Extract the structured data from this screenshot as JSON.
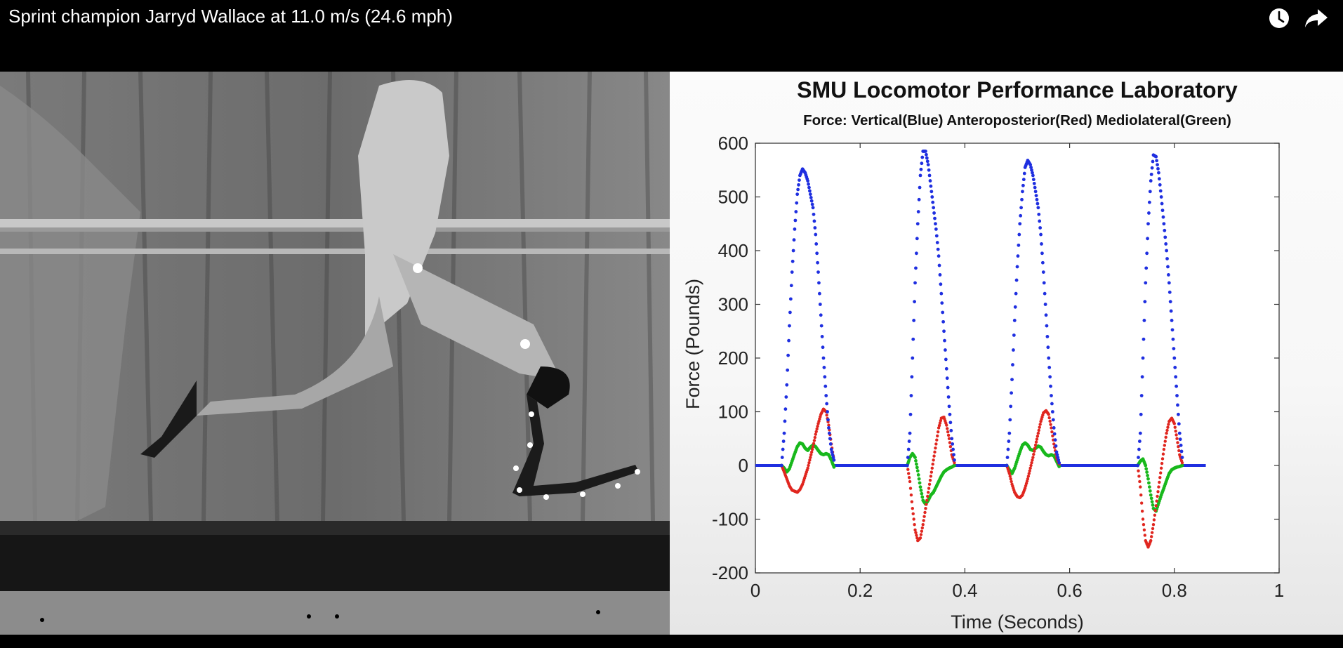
{
  "video": {
    "title": "Sprint champion Jarryd Wallace at 11.0 m/s (24.6 mph)",
    "icons": {
      "watch_later": "clock-icon",
      "share": "share-arrow-icon"
    }
  },
  "chart_data": {
    "type": "scatter",
    "title": "SMU Locomotor Performance Laboratory",
    "subtitle": "Force: Vertical(Blue) Anteroposterior(Red) Mediolateral(Green)",
    "xlabel": "Time (Seconds)",
    "ylabel": "Force (Pounds)",
    "xlim": [
      0,
      1
    ],
    "ylim": [
      -200,
      600
    ],
    "xticks": [
      "0",
      "0.2",
      "0.4",
      "0.6",
      "0.8",
      "1"
    ],
    "yticks": [
      "600",
      "500",
      "400",
      "300",
      "200",
      "100",
      "0",
      "-100",
      "-200"
    ],
    "grid": false,
    "colors": {
      "vertical": "#1f2fe0",
      "anteroposterior": "#e0261f",
      "mediolateral": "#18b81c"
    },
    "steps": [
      {
        "vertical": [
          [
            0.05,
            0
          ],
          [
            0.055,
            60
          ],
          [
            0.06,
            150
          ],
          [
            0.065,
            260
          ],
          [
            0.07,
            360
          ],
          [
            0.075,
            440
          ],
          [
            0.08,
            505
          ],
          [
            0.085,
            540
          ],
          [
            0.09,
            552
          ],
          [
            0.095,
            545
          ],
          [
            0.1,
            530
          ],
          [
            0.105,
            505
          ],
          [
            0.11,
            480
          ],
          [
            0.115,
            430
          ],
          [
            0.12,
            360
          ],
          [
            0.125,
            280
          ],
          [
            0.13,
            200
          ],
          [
            0.135,
            130
          ],
          [
            0.14,
            70
          ],
          [
            0.145,
            30
          ],
          [
            0.15,
            10
          ]
        ],
        "anteroposterior": [
          [
            0.05,
            0
          ],
          [
            0.055,
            -12
          ],
          [
            0.06,
            -25
          ],
          [
            0.065,
            -38
          ],
          [
            0.07,
            -46
          ],
          [
            0.075,
            -48
          ],
          [
            0.08,
            -50
          ],
          [
            0.085,
            -45
          ],
          [
            0.09,
            -35
          ],
          [
            0.095,
            -20
          ],
          [
            0.1,
            -5
          ],
          [
            0.105,
            15
          ],
          [
            0.11,
            35
          ],
          [
            0.115,
            58
          ],
          [
            0.12,
            78
          ],
          [
            0.125,
            95
          ],
          [
            0.13,
            105
          ],
          [
            0.135,
            100
          ],
          [
            0.14,
            75
          ],
          [
            0.145,
            40
          ],
          [
            0.15,
            10
          ]
        ],
        "mediolateral": [
          [
            0.05,
            0
          ],
          [
            0.055,
            -5
          ],
          [
            0.06,
            -12
          ],
          [
            0.065,
            -6
          ],
          [
            0.07,
            8
          ],
          [
            0.075,
            22
          ],
          [
            0.08,
            35
          ],
          [
            0.085,
            42
          ],
          [
            0.09,
            40
          ],
          [
            0.095,
            32
          ],
          [
            0.1,
            28
          ],
          [
            0.105,
            34
          ],
          [
            0.11,
            38
          ],
          [
            0.115,
            35
          ],
          [
            0.12,
            28
          ],
          [
            0.125,
            22
          ],
          [
            0.13,
            20
          ],
          [
            0.135,
            22
          ],
          [
            0.14,
            20
          ],
          [
            0.145,
            10
          ],
          [
            0.15,
            -3
          ]
        ]
      },
      {
        "vertical": [
          [
            0.29,
            0
          ],
          [
            0.295,
            60
          ],
          [
            0.3,
            200
          ],
          [
            0.305,
            340
          ],
          [
            0.31,
            450
          ],
          [
            0.315,
            540
          ],
          [
            0.32,
            585
          ],
          [
            0.325,
            585
          ],
          [
            0.33,
            560
          ],
          [
            0.335,
            520
          ],
          [
            0.34,
            480
          ],
          [
            0.345,
            440
          ],
          [
            0.35,
            390
          ],
          [
            0.355,
            320
          ],
          [
            0.36,
            250
          ],
          [
            0.365,
            180
          ],
          [
            0.37,
            110
          ],
          [
            0.375,
            50
          ],
          [
            0.38,
            10
          ]
        ],
        "anteroposterior": [
          [
            0.29,
            0
          ],
          [
            0.295,
            -30
          ],
          [
            0.3,
            -80
          ],
          [
            0.305,
            -120
          ],
          [
            0.31,
            -140
          ],
          [
            0.315,
            -135
          ],
          [
            0.32,
            -110
          ],
          [
            0.325,
            -80
          ],
          [
            0.33,
            -50
          ],
          [
            0.335,
            -20
          ],
          [
            0.34,
            10
          ],
          [
            0.345,
            40
          ],
          [
            0.35,
            70
          ],
          [
            0.355,
            88
          ],
          [
            0.36,
            90
          ],
          [
            0.365,
            75
          ],
          [
            0.37,
            50
          ],
          [
            0.375,
            20
          ],
          [
            0.38,
            5
          ]
        ],
        "mediolateral": [
          [
            0.29,
            0
          ],
          [
            0.295,
            15
          ],
          [
            0.3,
            22
          ],
          [
            0.305,
            15
          ],
          [
            0.31,
            -10
          ],
          [
            0.315,
            -40
          ],
          [
            0.32,
            -65
          ],
          [
            0.325,
            -72
          ],
          [
            0.33,
            -65
          ],
          [
            0.335,
            -55
          ],
          [
            0.34,
            -50
          ],
          [
            0.345,
            -40
          ],
          [
            0.35,
            -30
          ],
          [
            0.355,
            -20
          ],
          [
            0.36,
            -12
          ],
          [
            0.365,
            -8
          ],
          [
            0.37,
            -5
          ],
          [
            0.375,
            -3
          ],
          [
            0.38,
            0
          ]
        ]
      },
      {
        "vertical": [
          [
            0.48,
            0
          ],
          [
            0.485,
            60
          ],
          [
            0.49,
            160
          ],
          [
            0.495,
            270
          ],
          [
            0.5,
            370
          ],
          [
            0.505,
            450
          ],
          [
            0.51,
            510
          ],
          [
            0.515,
            555
          ],
          [
            0.52,
            568
          ],
          [
            0.525,
            560
          ],
          [
            0.53,
            540
          ],
          [
            0.535,
            510
          ],
          [
            0.54,
            480
          ],
          [
            0.545,
            430
          ],
          [
            0.55,
            360
          ],
          [
            0.555,
            280
          ],
          [
            0.56,
            200
          ],
          [
            0.565,
            130
          ],
          [
            0.57,
            70
          ],
          [
            0.575,
            25
          ],
          [
            0.58,
            5
          ]
        ],
        "anteroposterior": [
          [
            0.48,
            0
          ],
          [
            0.485,
            -15
          ],
          [
            0.49,
            -35
          ],
          [
            0.495,
            -50
          ],
          [
            0.5,
            -58
          ],
          [
            0.505,
            -60
          ],
          [
            0.51,
            -55
          ],
          [
            0.515,
            -42
          ],
          [
            0.52,
            -25
          ],
          [
            0.525,
            -5
          ],
          [
            0.53,
            15
          ],
          [
            0.535,
            38
          ],
          [
            0.54,
            60
          ],
          [
            0.545,
            82
          ],
          [
            0.55,
            98
          ],
          [
            0.555,
            102
          ],
          [
            0.56,
            95
          ],
          [
            0.565,
            70
          ],
          [
            0.57,
            40
          ],
          [
            0.575,
            15
          ],
          [
            0.58,
            3
          ]
        ],
        "mediolateral": [
          [
            0.48,
            0
          ],
          [
            0.485,
            -8
          ],
          [
            0.49,
            -15
          ],
          [
            0.495,
            -5
          ],
          [
            0.5,
            10
          ],
          [
            0.505,
            25
          ],
          [
            0.51,
            38
          ],
          [
            0.515,
            42
          ],
          [
            0.52,
            38
          ],
          [
            0.525,
            30
          ],
          [
            0.53,
            28
          ],
          [
            0.535,
            32
          ],
          [
            0.54,
            36
          ],
          [
            0.545,
            34
          ],
          [
            0.55,
            26
          ],
          [
            0.555,
            20
          ],
          [
            0.56,
            18
          ],
          [
            0.565,
            20
          ],
          [
            0.57,
            18
          ],
          [
            0.575,
            8
          ],
          [
            0.58,
            -2
          ]
        ]
      },
      {
        "vertical": [
          [
            0.73,
            0
          ],
          [
            0.735,
            60
          ],
          [
            0.74,
            200
          ],
          [
            0.745,
            340
          ],
          [
            0.75,
            450
          ],
          [
            0.755,
            530
          ],
          [
            0.76,
            578
          ],
          [
            0.765,
            575
          ],
          [
            0.77,
            545
          ],
          [
            0.775,
            500
          ],
          [
            0.78,
            450
          ],
          [
            0.785,
            400
          ],
          [
            0.79,
            340
          ],
          [
            0.795,
            270
          ],
          [
            0.8,
            200
          ],
          [
            0.805,
            130
          ],
          [
            0.81,
            60
          ],
          [
            0.815,
            15
          ]
        ],
        "anteroposterior": [
          [
            0.73,
            0
          ],
          [
            0.735,
            -40
          ],
          [
            0.74,
            -100
          ],
          [
            0.745,
            -140
          ],
          [
            0.75,
            -152
          ],
          [
            0.755,
            -140
          ],
          [
            0.76,
            -110
          ],
          [
            0.765,
            -75
          ],
          [
            0.77,
            -40
          ],
          [
            0.775,
            -5
          ],
          [
            0.78,
            30
          ],
          [
            0.785,
            60
          ],
          [
            0.79,
            82
          ],
          [
            0.795,
            88
          ],
          [
            0.8,
            78
          ],
          [
            0.805,
            50
          ],
          [
            0.81,
            20
          ],
          [
            0.815,
            5
          ]
        ],
        "mediolateral": [
          [
            0.73,
            0
          ],
          [
            0.735,
            8
          ],
          [
            0.74,
            12
          ],
          [
            0.745,
            0
          ],
          [
            0.75,
            -25
          ],
          [
            0.755,
            -55
          ],
          [
            0.76,
            -80
          ],
          [
            0.765,
            -85
          ],
          [
            0.77,
            -70
          ],
          [
            0.775,
            -55
          ],
          [
            0.78,
            -42
          ],
          [
            0.785,
            -28
          ],
          [
            0.79,
            -15
          ],
          [
            0.795,
            -8
          ],
          [
            0.8,
            -5
          ],
          [
            0.805,
            -3
          ],
          [
            0.81,
            -2
          ],
          [
            0.815,
            0
          ]
        ]
      }
    ],
    "baseline_segments": [
      [
        0,
        0.05
      ],
      [
        0.15,
        0.29
      ],
      [
        0.38,
        0.48
      ],
      [
        0.58,
        0.73
      ],
      [
        0.815,
        0.86
      ]
    ]
  }
}
